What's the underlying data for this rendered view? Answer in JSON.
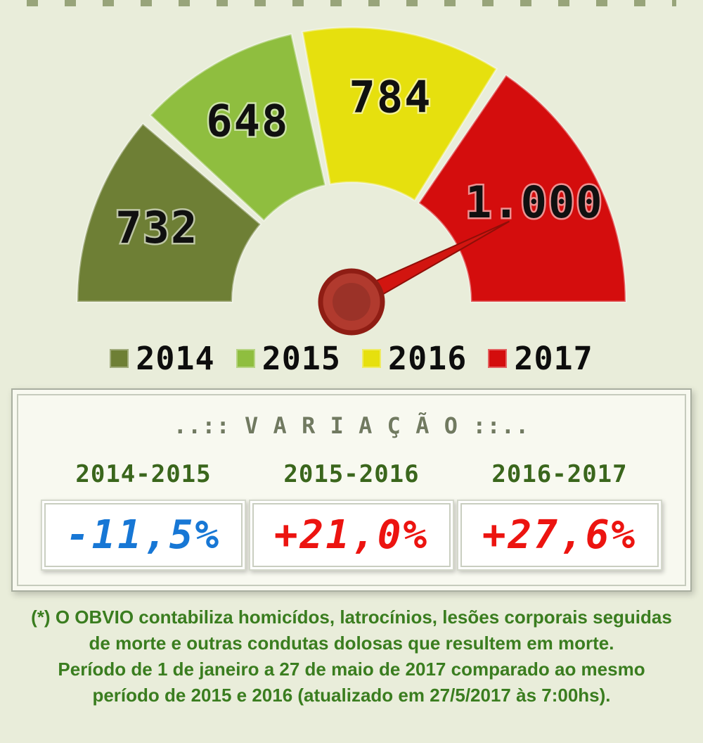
{
  "chart_data": {
    "type": "gauge",
    "shape": "semicircle",
    "categories": [
      "2014",
      "2015",
      "2016",
      "2017"
    ],
    "values": [
      732,
      648,
      784,
      1000
    ],
    "value_labels": [
      "732",
      "648",
      "784",
      "1.000"
    ],
    "colors": [
      "#6e7f35",
      "#8fbe3f",
      "#e6e00e",
      "#d40d0d"
    ],
    "segment_span": "proportional-to-values",
    "needle": {
      "points_to": "2017",
      "angle_deg": 27,
      "color": "#d21510",
      "outline": "#8f0e08",
      "hub_color": "#b13a2e",
      "hub_ring": "#8f1d14"
    },
    "legend_position": "bottom"
  },
  "legend": {
    "items": [
      {
        "label": "2014"
      },
      {
        "label": "2015"
      },
      {
        "label": "2016"
      },
      {
        "label": "2017"
      }
    ]
  },
  "variation": {
    "title": "..:: V A R I A Ç Ã O ::..",
    "items": [
      {
        "period": "2014-2015",
        "value": "-11,5%",
        "color": "#1777d5"
      },
      {
        "period": "2015-2016",
        "value": "+21,0%",
        "color": "#ec1410"
      },
      {
        "period": "2016-2017",
        "value": "+27,6%",
        "color": "#ec1410"
      }
    ]
  },
  "footnote": {
    "color": "#3a7d1f",
    "lines": [
      "(*) O OBVIO contabiliza homicídos, latrocínios, lesões corporais seguidas",
      "de morte e outras condutas dolosas que resultem em morte.",
      "Período de 1 de janeiro a 27 de maio de 2017 comparado ao mesmo",
      "período de 2015 e 2016 (atualizado em 27/5/2017 às 7:00hs)."
    ]
  }
}
